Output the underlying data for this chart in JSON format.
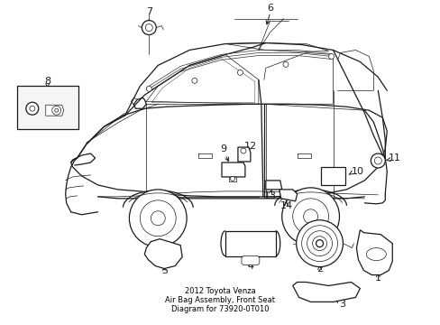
{
  "background_color": "#ffffff",
  "text_color": "#000000",
  "fig_width": 4.89,
  "fig_height": 3.6,
  "dpi": 100,
  "caption_lines": [
    "2012 Toyota Venza",
    "Air Bag Assembly, Front Seat",
    "Diagram for 73920-0T010"
  ],
  "caption_fontsize": 6.0,
  "line_color": "#1a1a1a",
  "lw_main": 0.9,
  "lw_thin": 0.5,
  "lw_thick": 1.2
}
